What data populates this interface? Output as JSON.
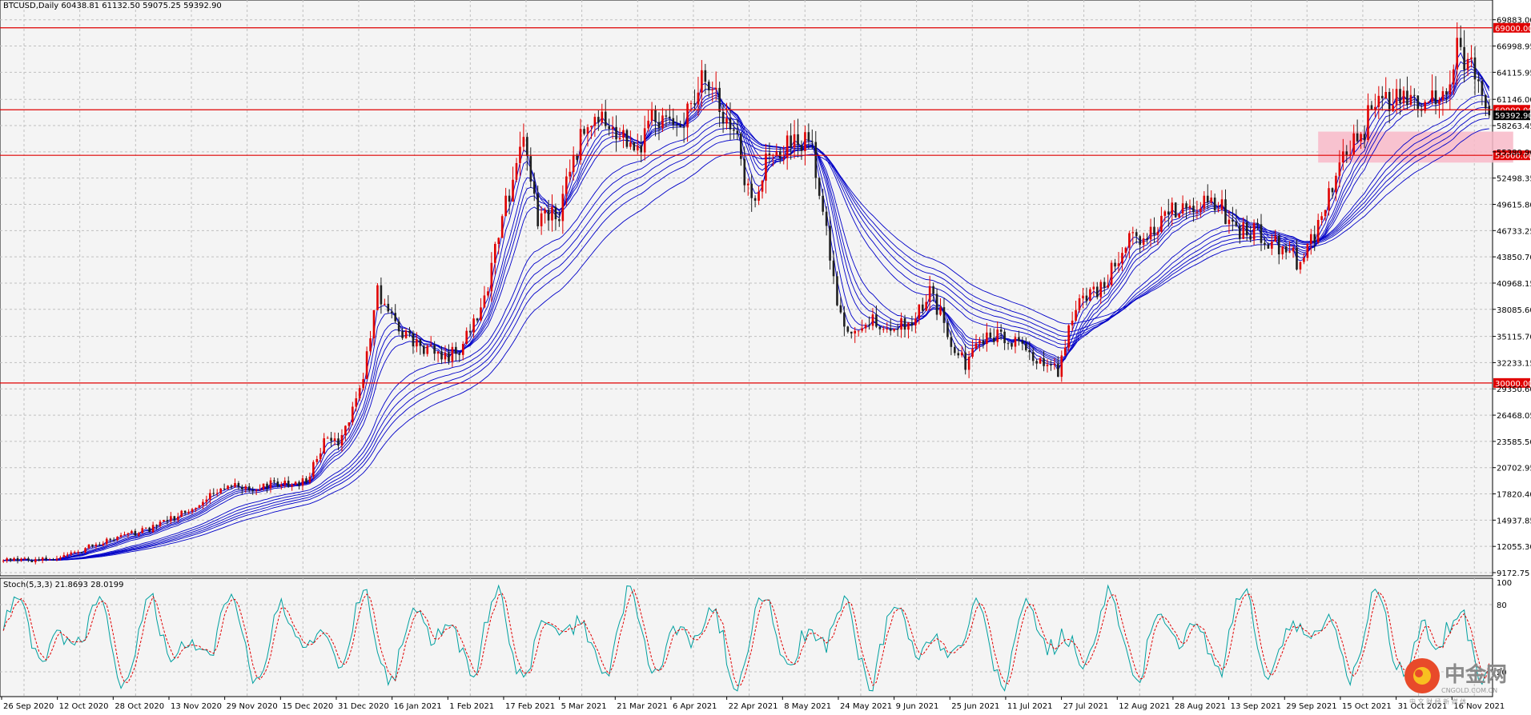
{
  "header": {
    "symbol_info": "BTCUSD,Daily  60438.81 61132.50 59075.25 59392.90"
  },
  "indicator": {
    "label": "Stoch(5,3,3) 21.8693 28.0199",
    "levels": [
      "100",
      "80",
      "20"
    ]
  },
  "watermark": {
    "name": "中金网",
    "url": "CNGOLD.COM.CN",
    "slogan": "中 文 财 经 新 媒 体"
  },
  "chart_data": {
    "type": "candlestick",
    "symbol": "BTCUSD",
    "timeframe": "Daily",
    "ohlc_current": {
      "open": 60438.81,
      "high": 61132.5,
      "low": 59075.25,
      "close": 59392.9
    },
    "ylim": [
      9172.75,
      71000
    ],
    "y_ticks": [
      69883.0,
      66998.95,
      64115.95,
      61146.0,
      58263.45,
      55380.9,
      52498.35,
      49615.8,
      46733.25,
      43850.7,
      40968.15,
      38085.6,
      35115.7,
      32233.15,
      29350.6,
      26468.05,
      23585.5,
      20702.95,
      17820.4,
      14937.85,
      12055.3,
      9172.75
    ],
    "y_tick_labels": [
      "69883.00",
      "66998.95",
      "64115.95",
      "61146.00",
      "58263.45",
      "55380.90",
      "52498.35",
      "49615.80",
      "46733.25",
      "43850.70",
      "40968.15",
      "38085.60",
      "35115.70",
      "32233.15",
      "29350.60",
      "26468.05",
      "23585.50",
      "20702.95",
      "17820.40",
      "14937.85",
      "12055.30",
      "9172.75"
    ],
    "x_labels": [
      "26 Sep 2020",
      "12 Oct 2020",
      "28 Oct 2020",
      "13 Nov 2020",
      "29 Nov 2020",
      "15 Dec 2020",
      "31 Dec 2020",
      "16 Jan 2021",
      "1 Feb 2021",
      "17 Feb 2021",
      "5 Mar 2021",
      "21 Mar 2021",
      "6 Apr 2021",
      "22 Apr 2021",
      "8 May 2021",
      "24 May 2021",
      "9 Jun 2021",
      "25 Jun 2021",
      "11 Jul 2021",
      "27 Jul 2021",
      "12 Aug 2021",
      "28 Aug 2021",
      "13 Sep 2021",
      "29 Sep 2021",
      "15 Oct 2021",
      "31 Oct 2021",
      "16 Nov 2021"
    ],
    "horizontal_levels": [
      {
        "price": 69000,
        "label": "69000.00",
        "color": "#e00000"
      },
      {
        "price": 60000,
        "label": "60000.00",
        "color": "#e00000"
      },
      {
        "price": 55000,
        "label": "55000.00",
        "color": "#e00000"
      },
      {
        "price": 30000,
        "label": "30000.00",
        "color": "#e00000"
      }
    ],
    "current_price_label": "59392.90",
    "zone": {
      "from_date_index": 369,
      "to_date_index": 417,
      "price_low": 54200,
      "price_high": 57600,
      "color": "#f8b8c8"
    },
    "keypoints": [
      {
        "i": 0,
        "p": 10700
      },
      {
        "i": 10,
        "p": 10500
      },
      {
        "i": 20,
        "p": 11300
      },
      {
        "i": 30,
        "p": 13000
      },
      {
        "i": 40,
        "p": 13800
      },
      {
        "i": 50,
        "p": 15600
      },
      {
        "i": 60,
        "p": 18300
      },
      {
        "i": 65,
        "p": 18800
      },
      {
        "i": 70,
        "p": 17800
      },
      {
        "i": 75,
        "p": 19200
      },
      {
        "i": 80,
        "p": 19000
      },
      {
        "i": 85,
        "p": 19100
      },
      {
        "i": 90,
        "p": 23400
      },
      {
        "i": 95,
        "p": 23800
      },
      {
        "i": 100,
        "p": 28900
      },
      {
        "i": 105,
        "p": 40200
      },
      {
        "i": 112,
        "p": 35500
      },
      {
        "i": 117,
        "p": 34200
      },
      {
        "i": 122,
        "p": 32800
      },
      {
        "i": 128,
        "p": 33300
      },
      {
        "i": 135,
        "p": 39200
      },
      {
        "i": 140,
        "p": 48500
      },
      {
        "i": 146,
        "p": 55800
      },
      {
        "i": 150,
        "p": 47800
      },
      {
        "i": 156,
        "p": 48800
      },
      {
        "i": 162,
        "p": 56900
      },
      {
        "i": 166,
        "p": 59500
      },
      {
        "i": 172,
        "p": 57500
      },
      {
        "i": 177,
        "p": 54700
      },
      {
        "i": 182,
        "p": 58700
      },
      {
        "i": 190,
        "p": 58300
      },
      {
        "i": 196,
        "p": 63500
      },
      {
        "i": 200,
        "p": 61200
      },
      {
        "i": 206,
        "p": 56300
      },
      {
        "i": 210,
        "p": 49500
      },
      {
        "i": 214,
        "p": 54800
      },
      {
        "i": 220,
        "p": 55800
      },
      {
        "i": 226,
        "p": 57200
      },
      {
        "i": 230,
        "p": 50000
      },
      {
        "i": 234,
        "p": 38400
      },
      {
        "i": 238,
        "p": 35600
      },
      {
        "i": 242,
        "p": 37000
      },
      {
        "i": 248,
        "p": 35900
      },
      {
        "i": 255,
        "p": 36600
      },
      {
        "i": 260,
        "p": 40300
      },
      {
        "i": 265,
        "p": 35500
      },
      {
        "i": 270,
        "p": 32100
      },
      {
        "i": 275,
        "p": 34700
      },
      {
        "i": 280,
        "p": 35200
      },
      {
        "i": 286,
        "p": 33800
      },
      {
        "i": 292,
        "p": 31900
      },
      {
        "i": 296,
        "p": 31300
      },
      {
        "i": 302,
        "p": 39600
      },
      {
        "i": 308,
        "p": 40100
      },
      {
        "i": 315,
        "p": 45500
      },
      {
        "i": 322,
        "p": 46200
      },
      {
        "i": 328,
        "p": 49200
      },
      {
        "i": 334,
        "p": 48800
      },
      {
        "i": 340,
        "p": 50000
      },
      {
        "i": 346,
        "p": 46900
      },
      {
        "i": 352,
        "p": 46600
      },
      {
        "i": 358,
        "p": 44900
      },
      {
        "i": 364,
        "p": 43200
      },
      {
        "i": 370,
        "p": 48200
      },
      {
        "i": 376,
        "p": 55300
      },
      {
        "i": 382,
        "p": 58000
      },
      {
        "i": 386,
        "p": 62500
      },
      {
        "i": 390,
        "p": 61000
      },
      {
        "i": 396,
        "p": 61200
      },
      {
        "i": 402,
        "p": 61300
      },
      {
        "i": 405,
        "p": 61700
      },
      {
        "i": 408,
        "p": 67100
      },
      {
        "i": 411,
        "p": 64900
      },
      {
        "i": 414,
        "p": 63800
      },
      {
        "i": 417,
        "p": 59400
      }
    ],
    "x_total_bars": 418,
    "candle_color": "#e00000",
    "ribbon_color": "#0000c8",
    "stoch": {
      "k": 21.8693,
      "d": 28.0199,
      "k_color": "#00a0a0",
      "d_color": "#e00000",
      "levels": [
        100,
        80,
        20
      ]
    }
  }
}
